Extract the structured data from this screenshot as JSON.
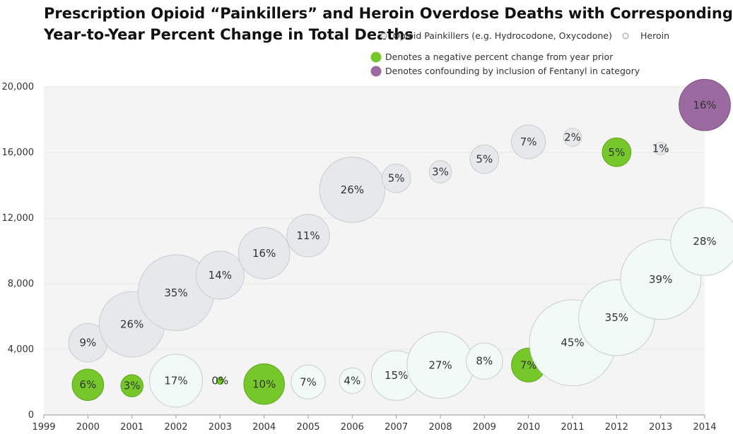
{
  "title_line1": "Prescription Opioid “Painkillers” and Heroin Overdose Deaths with Corresponding",
  "title_line2": "Year-to-Year Percent Change in Total Deaths",
  "legend": {
    "opioid": "Opioid Painkillers (e.g. Hydrocodone, Oxycodone)",
    "heroin": "Heroin",
    "negative": "Denotes a negative percent change from year prior",
    "fentanyl": "Denotes confounding by inclusion of Fentanyl in category"
  },
  "colors": {
    "opioid": "#e6e9eb",
    "heroin": "#f1faf6",
    "negative": "#76c82a",
    "fentanyl": "#9b6aa0",
    "plot_bg": "#f4f4f4",
    "gridline": "#e6e6e6"
  },
  "chart_data": {
    "type": "scatter",
    "title": "Prescription Opioid “Painkillers” and Heroin Overdose Deaths with Corresponding Year-to-Year Percent Change in Total Deaths",
    "xlabel": "",
    "ylabel": "",
    "xlim": [
      1999,
      2014
    ],
    "ylim": [
      0,
      20000
    ],
    "xticks": [
      "1999",
      "2000",
      "2001",
      "2002",
      "2003",
      "2004",
      "2005",
      "2006",
      "2007",
      "2008",
      "2009",
      "2010",
      "2011",
      "2012",
      "2013",
      "2014"
    ],
    "yticks": [
      "0",
      "4,000",
      "8,000",
      "12,000",
      "16,000",
      "20,000"
    ],
    "grid": true,
    "legend_position": "top-right",
    "bubble_size": "percent change",
    "series": [
      {
        "name": "Opioid Painkillers (e.g. Hydrocodone, Oxycodone)",
        "points": [
          {
            "x": 2000,
            "y": 4400,
            "pct": 9,
            "label": "9%",
            "status": "normal"
          },
          {
            "x": 2001,
            "y": 5530,
            "pct": 26,
            "label": "26%",
            "status": "normal"
          },
          {
            "x": 2002,
            "y": 7450,
            "pct": 35,
            "label": "35%",
            "status": "normal"
          },
          {
            "x": 2003,
            "y": 8520,
            "pct": 14,
            "label": "14%",
            "status": "normal"
          },
          {
            "x": 2004,
            "y": 9860,
            "pct": 16,
            "label": "16%",
            "status": "normal"
          },
          {
            "x": 2005,
            "y": 10930,
            "pct": 11,
            "label": "11%",
            "status": "normal"
          },
          {
            "x": 2006,
            "y": 13720,
            "pct": 26,
            "label": "26%",
            "status": "normal"
          },
          {
            "x": 2007,
            "y": 14420,
            "pct": 5,
            "label": "5%",
            "status": "normal"
          },
          {
            "x": 2008,
            "y": 14820,
            "pct": 3,
            "label": "3%",
            "status": "normal"
          },
          {
            "x": 2009,
            "y": 15590,
            "pct": 5,
            "label": "5%",
            "status": "normal"
          },
          {
            "x": 2010,
            "y": 16650,
            "pct": 7,
            "label": "7%",
            "status": "normal"
          },
          {
            "x": 2011,
            "y": 16920,
            "pct": 2,
            "label": "2%",
            "status": "normal"
          },
          {
            "x": 2012,
            "y": 16010,
            "pct": 5,
            "label": "5%",
            "status": "negative"
          },
          {
            "x": 2013,
            "y": 16240,
            "pct": 1,
            "label": "1%",
            "status": "normal"
          },
          {
            "x": 2014,
            "y": 18890,
            "pct": 16,
            "label": "16%",
            "status": "fentanyl"
          }
        ]
      },
      {
        "name": "Heroin",
        "points": [
          {
            "x": 2000,
            "y": 1840,
            "pct": 6,
            "label": "6%",
            "status": "negative"
          },
          {
            "x": 2001,
            "y": 1780,
            "pct": 3,
            "label": "3%",
            "status": "negative"
          },
          {
            "x": 2002,
            "y": 2090,
            "pct": 17,
            "label": "17%",
            "status": "normal"
          },
          {
            "x": 2003,
            "y": 2080,
            "pct": 0,
            "label": "0%",
            "status": "negative"
          },
          {
            "x": 2004,
            "y": 1880,
            "pct": 10,
            "label": "10%",
            "status": "negative"
          },
          {
            "x": 2005,
            "y": 2010,
            "pct": 7,
            "label": "7%",
            "status": "normal"
          },
          {
            "x": 2006,
            "y": 2090,
            "pct": 4,
            "label": "4%",
            "status": "normal"
          },
          {
            "x": 2007,
            "y": 2400,
            "pct": 15,
            "label": "15%",
            "status": "normal"
          },
          {
            "x": 2008,
            "y": 3040,
            "pct": 27,
            "label": "27%",
            "status": "normal"
          },
          {
            "x": 2009,
            "y": 3280,
            "pct": 8,
            "label": "8%",
            "status": "normal"
          },
          {
            "x": 2010,
            "y": 3040,
            "pct": 7,
            "label": "7%",
            "status": "negative"
          },
          {
            "x": 2011,
            "y": 4400,
            "pct": 45,
            "label": "45%",
            "status": "normal"
          },
          {
            "x": 2012,
            "y": 5930,
            "pct": 35,
            "label": "35%",
            "status": "normal"
          },
          {
            "x": 2013,
            "y": 8260,
            "pct": 39,
            "label": "39%",
            "status": "normal"
          },
          {
            "x": 2014,
            "y": 10570,
            "pct": 28,
            "label": "28%",
            "status": "normal"
          }
        ]
      }
    ]
  }
}
